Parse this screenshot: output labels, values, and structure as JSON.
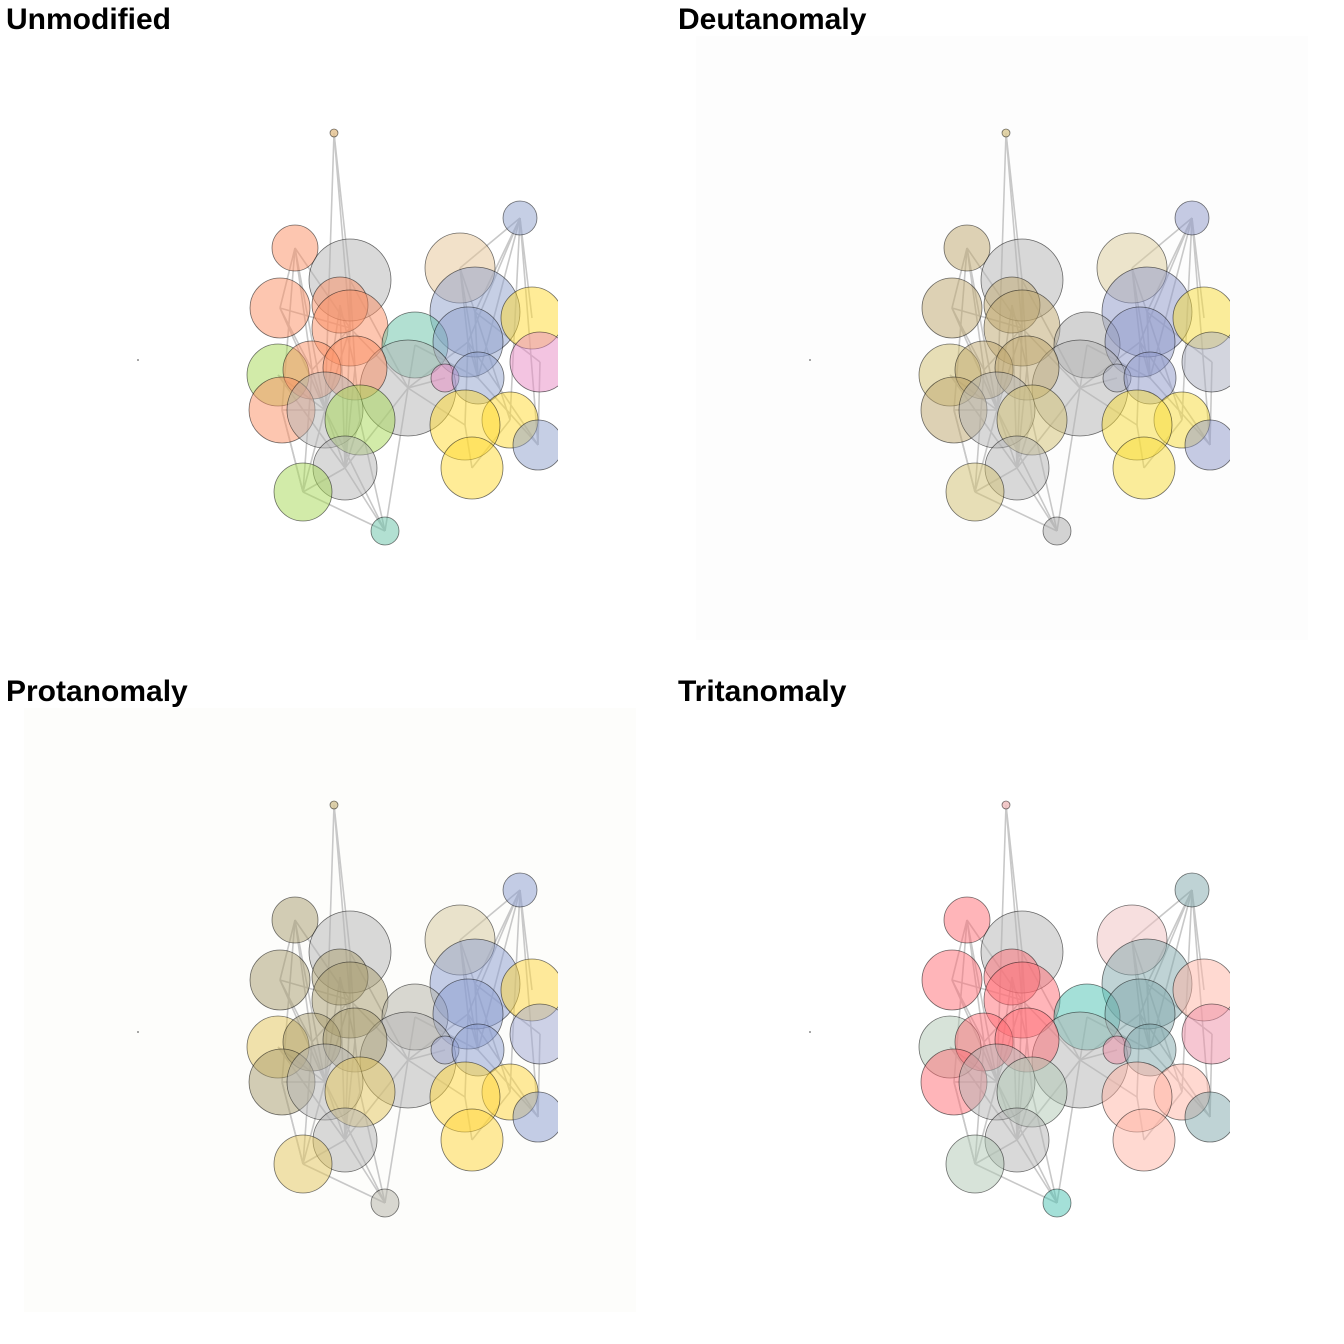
{
  "panels": [
    {
      "id": "unmodified",
      "title": "Unmodified",
      "background": "#ffffff",
      "palette": {
        "salmon": "#fc8d62",
        "grey": "#b3b3b3",
        "teal": "#66c2a5",
        "blue": "#8da0cb",
        "yellow": "#ffd92f",
        "green": "#a6d854",
        "pink": "#e78ac3",
        "tan": "#e5c494"
      }
    },
    {
      "id": "deutanomaly",
      "title": "Deutanomaly",
      "background": "#fdfdfd",
      "palette": {
        "salmon": "#bda66b",
        "grey": "#b3b3b3",
        "teal": "#aaaaaa",
        "blue": "#8e98c9",
        "yellow": "#f7dc38",
        "green": "#d2c070",
        "pink": "#a9adbf",
        "tan": "#dccb99"
      }
    },
    {
      "id": "protanomaly",
      "title": "Protanomaly",
      "background": "#fdfdfb",
      "palette": {
        "salmon": "#a89c6d",
        "grey": "#b3b3b3",
        "teal": "#b4b2a6",
        "blue": "#8a9cd0",
        "yellow": "#ffd63a",
        "green": "#e4c65c",
        "pink": "#9da5d2",
        "tan": "#d6c79b"
      }
    },
    {
      "id": "tritanomaly",
      "title": "Tritanomaly",
      "background": "#ffffff",
      "palette": {
        "salmon": "#ff6b74",
        "grey": "#b3b3b3",
        "teal": "#49c2b2",
        "blue": "#7fa8ab",
        "yellow": "#ffb4a4",
        "green": "#b0c8b4",
        "pink": "#ee8ea6",
        "tan": "#f0bfbf"
      }
    }
  ]
}
